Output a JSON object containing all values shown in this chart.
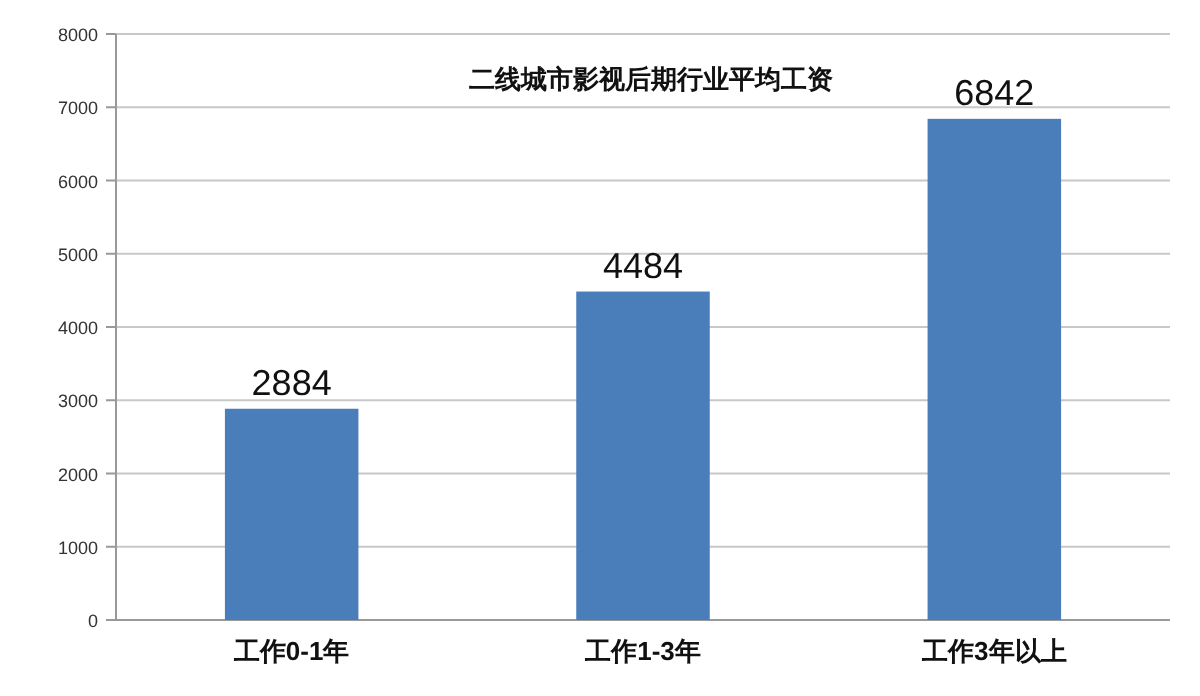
{
  "chart_data": {
    "type": "bar",
    "title": "二线城市影视后期行业平均工资",
    "categories": [
      "工作0-1年",
      "工作1-3年",
      "工作3年以上"
    ],
    "values": [
      2884,
      4484,
      6842
    ],
    "color": "#4a7ebb",
    "ylim": [
      0,
      8000
    ],
    "yticks": [
      0,
      1000,
      2000,
      3000,
      4000,
      5000,
      6000,
      7000,
      8000
    ],
    "grid": "y",
    "data_labels": true
  }
}
